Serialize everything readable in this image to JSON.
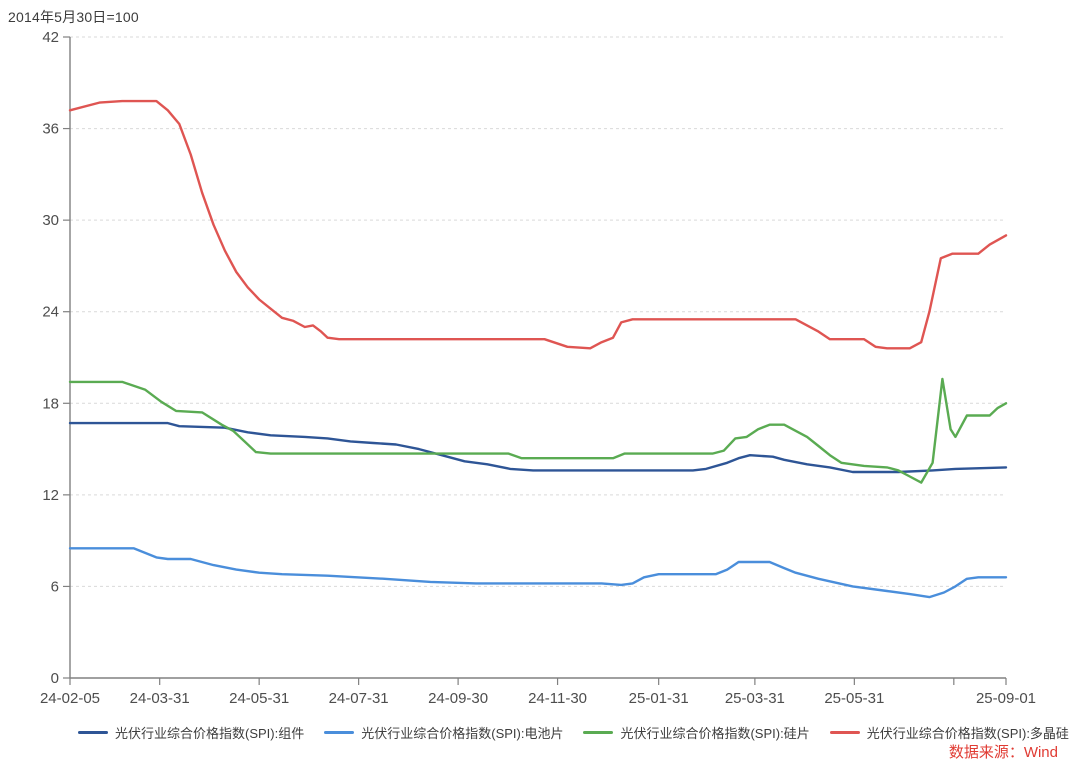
{
  "header": {
    "title": "2014年5月30日=100"
  },
  "footer": {
    "source": "数据来源：Wind"
  },
  "colors": {
    "module_blue": "#2e5596",
    "cell_blue": "#4a8edb",
    "wafer_green": "#5aab52",
    "poly_red": "#df5552",
    "source_red": "#e03b33",
    "axis": "#808080",
    "grid": "#d9d9d9",
    "tick_label": "#4d4d4d",
    "legend_text": "#3d3d3d"
  },
  "chart_data": {
    "type": "line",
    "title": "2014年5月30日=100",
    "xlabel": "",
    "ylabel": "",
    "grid": "horizontal-dashed",
    "legend_position": "bottom",
    "y_axis": {
      "min": 0,
      "max": 42,
      "tick_interval": 6,
      "ticks": [
        0,
        6,
        12,
        18,
        24,
        30,
        36,
        42
      ]
    },
    "x_axis": {
      "start_date": "24-02-05",
      "end_date": "25-09-01",
      "tick_labels": [
        "24-02-05",
        "24-03-31",
        "24-05-31",
        "24-07-31",
        "24-09-30",
        "24-11-30",
        "25-01-31",
        "25-03-31",
        "25-05-31",
        "25-09-01"
      ],
      "unlabeled_ticks": [
        "25-07-31"
      ]
    },
    "series": [
      {
        "name": "光伏行业综合价格指数(SPI):组件",
        "color": "#2e5596",
        "points": [
          [
            "24-02-05",
            16.7
          ],
          [
            "24-04-05",
            16.7
          ],
          [
            "24-04-12",
            16.5
          ],
          [
            "24-05-10",
            16.4
          ],
          [
            "24-05-24",
            16.1
          ],
          [
            "24-06-07",
            15.9
          ],
          [
            "24-06-28",
            15.8
          ],
          [
            "24-07-12",
            15.7
          ],
          [
            "24-07-26",
            15.5
          ],
          [
            "24-08-09",
            15.4
          ],
          [
            "24-08-23",
            15.3
          ],
          [
            "24-09-06",
            15.0
          ],
          [
            "24-09-20",
            14.6
          ],
          [
            "24-10-04",
            14.2
          ],
          [
            "24-10-18",
            14.0
          ],
          [
            "24-11-01",
            13.7
          ],
          [
            "24-11-15",
            13.6
          ],
          [
            "25-02-21",
            13.6
          ],
          [
            "25-03-01",
            13.7
          ],
          [
            "25-03-14",
            14.1
          ],
          [
            "25-03-21",
            14.4
          ],
          [
            "25-03-28",
            14.6
          ],
          [
            "25-04-11",
            14.5
          ],
          [
            "25-04-18",
            14.3
          ],
          [
            "25-05-02",
            14.0
          ],
          [
            "25-05-16",
            13.8
          ],
          [
            "25-05-30",
            13.5
          ],
          [
            "25-06-27",
            13.5
          ],
          [
            "25-07-18",
            13.6
          ],
          [
            "25-08-01",
            13.7
          ],
          [
            "25-09-01",
            13.8
          ]
        ]
      },
      {
        "name": "光伏行业综合价格指数(SPI):电池片",
        "color": "#4a8edb",
        "points": [
          [
            "24-02-05",
            8.5
          ],
          [
            "24-03-15",
            8.5
          ],
          [
            "24-03-29",
            7.9
          ],
          [
            "24-04-05",
            7.8
          ],
          [
            "24-04-19",
            7.8
          ],
          [
            "24-05-03",
            7.4
          ],
          [
            "24-05-17",
            7.1
          ],
          [
            "24-05-31",
            6.9
          ],
          [
            "24-06-14",
            6.8
          ],
          [
            "24-07-12",
            6.7
          ],
          [
            "24-08-16",
            6.5
          ],
          [
            "24-09-13",
            6.3
          ],
          [
            "24-10-11",
            6.2
          ],
          [
            "24-12-27",
            6.2
          ],
          [
            "25-01-08",
            6.1
          ],
          [
            "25-01-15",
            6.2
          ],
          [
            "25-01-22",
            6.6
          ],
          [
            "25-01-31",
            6.8
          ],
          [
            "25-03-07",
            6.8
          ],
          [
            "25-03-14",
            7.1
          ],
          [
            "25-03-21",
            7.6
          ],
          [
            "25-04-09",
            7.6
          ],
          [
            "25-04-18",
            7.2
          ],
          [
            "25-04-25",
            6.9
          ],
          [
            "25-05-09",
            6.5
          ],
          [
            "25-05-30",
            6.0
          ],
          [
            "25-06-20",
            5.7
          ],
          [
            "25-07-04",
            5.5
          ],
          [
            "25-07-16",
            5.3
          ],
          [
            "25-07-25",
            5.6
          ],
          [
            "25-08-01",
            6.0
          ],
          [
            "25-08-08",
            6.5
          ],
          [
            "25-08-15",
            6.6
          ],
          [
            "25-09-01",
            6.6
          ]
        ]
      },
      {
        "name": "光伏行业综合价格指数(SPI):硅片",
        "color": "#5aab52",
        "points": [
          [
            "24-02-05",
            19.4
          ],
          [
            "24-03-08",
            19.4
          ],
          [
            "24-03-22",
            18.9
          ],
          [
            "24-04-01",
            18.1
          ],
          [
            "24-04-10",
            17.5
          ],
          [
            "24-04-26",
            17.4
          ],
          [
            "24-05-08",
            16.6
          ],
          [
            "24-05-15",
            16.2
          ],
          [
            "24-05-22",
            15.5
          ],
          [
            "24-05-29",
            14.8
          ],
          [
            "24-06-07",
            14.7
          ],
          [
            "24-10-31",
            14.7
          ],
          [
            "24-11-08",
            14.4
          ],
          [
            "25-01-03",
            14.4
          ],
          [
            "25-01-10",
            14.7
          ],
          [
            "25-03-05",
            14.7
          ],
          [
            "25-03-12",
            14.9
          ],
          [
            "25-03-19",
            15.7
          ],
          [
            "25-03-26",
            15.8
          ],
          [
            "25-04-02",
            16.3
          ],
          [
            "25-04-09",
            16.6
          ],
          [
            "25-04-18",
            16.6
          ],
          [
            "25-04-25",
            16.2
          ],
          [
            "25-05-02",
            15.8
          ],
          [
            "25-05-09",
            15.2
          ],
          [
            "25-05-16",
            14.6
          ],
          [
            "25-05-23",
            14.1
          ],
          [
            "25-06-06",
            13.9
          ],
          [
            "25-06-20",
            13.8
          ],
          [
            "25-06-27",
            13.6
          ],
          [
            "25-07-04",
            13.2
          ],
          [
            "25-07-11",
            12.8
          ],
          [
            "25-07-18",
            14.1
          ],
          [
            "25-07-24",
            19.6
          ],
          [
            "25-07-29",
            16.3
          ],
          [
            "25-08-01",
            15.8
          ],
          [
            "25-08-08",
            17.2
          ],
          [
            "25-08-22",
            17.2
          ],
          [
            "25-08-27",
            17.7
          ],
          [
            "25-09-01",
            18.0
          ]
        ]
      },
      {
        "name": "光伏行业综合价格指数(SPI):多晶硅",
        "color": "#df5552",
        "points": [
          [
            "24-02-05",
            37.2
          ],
          [
            "24-02-23",
            37.7
          ],
          [
            "24-03-08",
            37.8
          ],
          [
            "24-03-29",
            37.8
          ],
          [
            "24-04-05",
            37.2
          ],
          [
            "24-04-12",
            36.3
          ],
          [
            "24-04-19",
            34.3
          ],
          [
            "24-04-26",
            31.8
          ],
          [
            "24-05-03",
            29.7
          ],
          [
            "24-05-10",
            28.0
          ],
          [
            "24-05-17",
            26.6
          ],
          [
            "24-05-24",
            25.6
          ],
          [
            "24-05-31",
            24.8
          ],
          [
            "24-06-07",
            24.2
          ],
          [
            "24-06-14",
            23.6
          ],
          [
            "24-06-21",
            23.4
          ],
          [
            "24-06-28",
            23.0
          ],
          [
            "24-07-03",
            23.1
          ],
          [
            "24-07-08",
            22.7
          ],
          [
            "24-07-12",
            22.3
          ],
          [
            "24-07-19",
            22.2
          ],
          [
            "24-11-22",
            22.2
          ],
          [
            "24-12-06",
            21.7
          ],
          [
            "24-12-20",
            21.6
          ],
          [
            "24-12-27",
            22.0
          ],
          [
            "25-01-03",
            22.3
          ],
          [
            "25-01-08",
            23.3
          ],
          [
            "25-01-15",
            23.5
          ],
          [
            "25-04-25",
            23.5
          ],
          [
            "25-05-09",
            22.7
          ],
          [
            "25-05-16",
            22.2
          ],
          [
            "25-06-06",
            22.2
          ],
          [
            "25-06-13",
            21.7
          ],
          [
            "25-06-20",
            21.6
          ],
          [
            "25-07-04",
            21.6
          ],
          [
            "25-07-11",
            22.0
          ],
          [
            "25-07-16",
            24.0
          ],
          [
            "25-07-23",
            27.5
          ],
          [
            "25-07-30",
            27.8
          ],
          [
            "25-08-15",
            27.8
          ],
          [
            "25-08-22",
            28.4
          ],
          [
            "25-09-01",
            29.0
          ]
        ]
      }
    ]
  }
}
